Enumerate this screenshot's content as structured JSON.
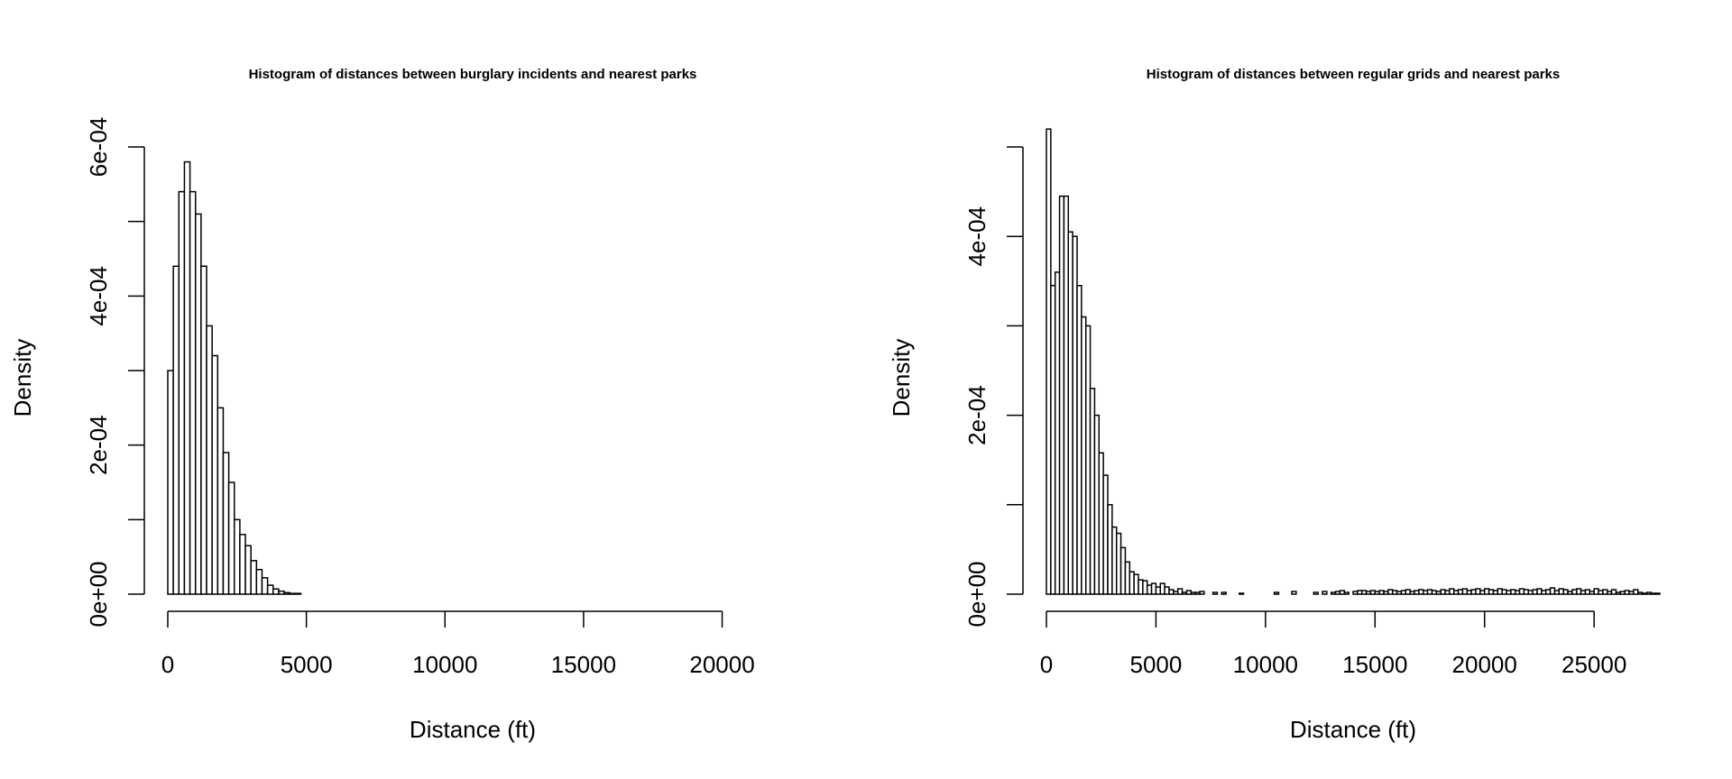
{
  "chart_data": [
    {
      "type": "bar",
      "title": "Histogram of distances between burglary incidents and nearest parks",
      "xlabel": "Distance (ft)",
      "ylabel": "Density",
      "xlim": [
        0,
        22000
      ],
      "ylim": [
        0,
        0.0006
      ],
      "x_ticks": [
        0,
        5000,
        10000,
        15000,
        20000
      ],
      "x_tick_labels": [
        "0",
        "5000",
        "10000",
        "15000",
        "20000"
      ],
      "y_ticks": [
        0,
        0.0001,
        0.0002,
        0.0003,
        0.0004,
        0.0005,
        0.0006
      ],
      "y_tick_labels": [
        "0e+00",
        "",
        "2e-04",
        "",
        "4e-04",
        "",
        "6e-04"
      ],
      "bin_width": 200,
      "bin_start": 0,
      "values": [
        0.0003,
        0.00044,
        0.00054,
        0.00058,
        0.00054,
        0.00051,
        0.00044,
        0.00036,
        0.00032,
        0.00025,
        0.00019,
        0.00015,
        0.0001,
        8e-05,
        6.5e-05,
        4.5e-05,
        3.3e-05,
        2.2e-05,
        1.2e-05,
        7e-06,
        4e-06,
        2e-06,
        1e-06,
        1e-06
      ],
      "grid": false,
      "legend": "none"
    },
    {
      "type": "bar",
      "title": "Histogram of distances between regular grids and nearest parks",
      "xlabel": "Distance (ft)",
      "ylabel": "Density",
      "xlim": [
        0,
        28000
      ],
      "ylim": [
        0,
        0.0005
      ],
      "x_ticks": [
        0,
        5000,
        10000,
        15000,
        20000,
        25000
      ],
      "x_tick_labels": [
        "0",
        "5000",
        "10000",
        "15000",
        "20000",
        "25000"
      ],
      "y_ticks": [
        0,
        0.0001,
        0.0002,
        0.0003,
        0.0004,
        0.0005
      ],
      "y_tick_labels": [
        "0e+00",
        "",
        "2e-04",
        "",
        "4e-04",
        ""
      ],
      "bin_width": 200,
      "bin_start": 0,
      "values": [
        0.00052,
        0.000345,
        0.00036,
        0.000445,
        0.000445,
        0.000405,
        0.0004,
        0.000345,
        0.00031,
        0.0003,
        0.00023,
        0.0002,
        0.000158,
        0.000133,
        0.0001,
        7.5e-05,
        6.8e-05,
        5.2e-05,
        3.6e-05,
        2.5e-05,
        2.2e-05,
        1.6e-05,
        1.5e-05,
        1e-05,
        1.2e-05,
        8e-06,
        1.2e-05,
        8e-06,
        5e-06,
        3e-06,
        6e-06,
        2e-06,
        4e-06,
        2e-06,
        2e-06,
        3e-06,
        0,
        0,
        2e-06,
        0,
        2e-06,
        0,
        0,
        0,
        1e-06,
        0,
        0,
        0,
        0,
        0,
        0,
        0,
        2e-06,
        0,
        0,
        0,
        3e-06,
        0,
        0,
        0,
        0,
        2e-06,
        0,
        3e-06,
        0,
        2e-06,
        3e-06,
        4e-06,
        2e-06,
        0,
        3e-06,
        4e-06,
        4e-06,
        3e-06,
        4e-06,
        3e-06,
        4e-06,
        3e-06,
        5e-06,
        4e-06,
        3e-06,
        4e-06,
        5e-06,
        3e-06,
        4e-06,
        5e-06,
        4e-06,
        5e-06,
        4e-06,
        3e-06,
        5e-06,
        4e-06,
        6e-06,
        4e-06,
        5e-06,
        6e-06,
        4e-06,
        5e-06,
        6e-06,
        4e-06,
        6e-06,
        5e-06,
        4e-06,
        6e-06,
        5e-06,
        4e-06,
        5e-06,
        4e-06,
        6e-06,
        5e-06,
        4e-06,
        5e-06,
        6e-06,
        4e-06,
        5e-06,
        7e-06,
        4e-06,
        6e-06,
        5e-06,
        3e-06,
        5e-06,
        6e-06,
        4e-06,
        5e-06,
        3e-06,
        6e-06,
        4e-06,
        5e-06,
        3e-06,
        5e-06,
        2e-06,
        3e-06,
        4e-06,
        3e-06,
        5e-06,
        2e-06,
        1e-06,
        2e-06,
        1e-06,
        1e-06
      ],
      "grid": false,
      "legend": "none"
    }
  ]
}
